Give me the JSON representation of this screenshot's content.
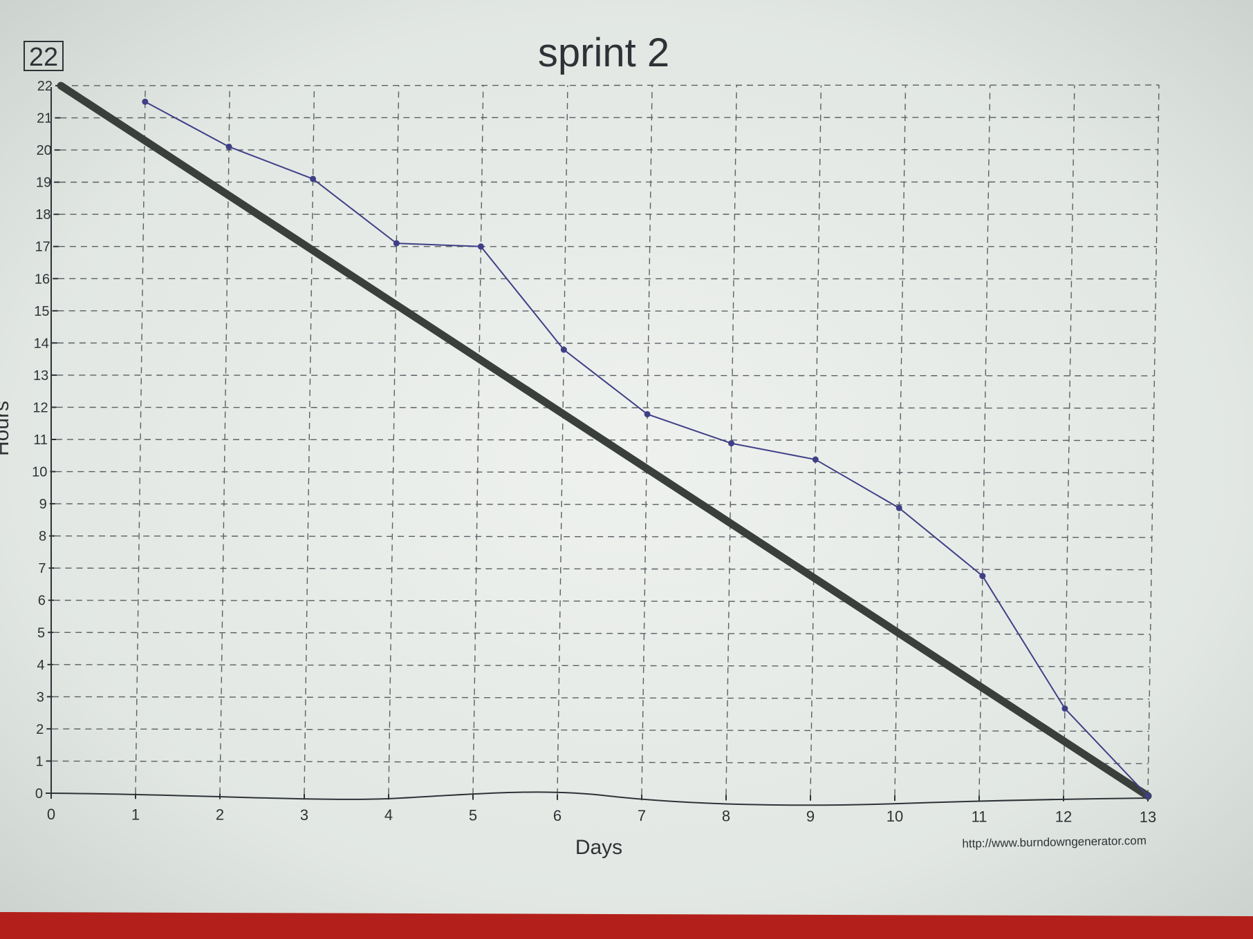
{
  "sprint_badge": "22",
  "source_url": "http://www.burndowngenerator.com",
  "colors": {
    "paper": "#e7ebe8",
    "grid": "#5a5f63",
    "ideal_line": "#3a3f3c",
    "actual_line": "#3f3f86",
    "text": "#2e3236",
    "desk": "#b3201b"
  },
  "chart_data": {
    "type": "line",
    "title": "sprint 2",
    "xlabel": "Days",
    "ylabel": "Hours",
    "xlim": [
      0,
      13
    ],
    "ylim": [
      0,
      22
    ],
    "x_ticks": [
      0,
      1,
      2,
      3,
      4,
      5,
      6,
      7,
      8,
      9,
      10,
      11,
      12,
      13
    ],
    "y_ticks": [
      0,
      1,
      2,
      3,
      4,
      5,
      6,
      7,
      8,
      9,
      10,
      11,
      12,
      13,
      14,
      15,
      16,
      17,
      18,
      19,
      20,
      21,
      22
    ],
    "grid": true,
    "series": [
      {
        "style": "thick",
        "x": [
          0,
          13
        ],
        "y": [
          22,
          0
        ]
      },
      {
        "style": "thin-with-markers",
        "x": [
          1,
          2,
          3,
          4,
          5,
          6,
          7,
          8,
          9,
          10,
          11,
          12,
          13
        ],
        "y": [
          21.5,
          20.1,
          19.1,
          17.1,
          17.0,
          13.8,
          11.8,
          10.9,
          10.4,
          8.9,
          6.8,
          2.7,
          0
        ]
      }
    ]
  }
}
